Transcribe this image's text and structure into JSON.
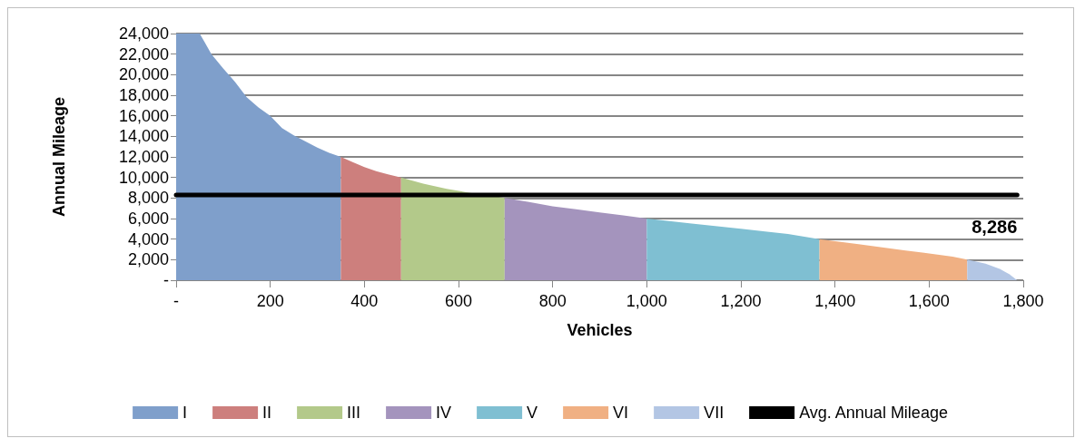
{
  "chart_data": {
    "type": "area",
    "xlabel": "Vehicles",
    "ylabel": "Annual Mileage",
    "xlim": [
      0,
      1800
    ],
    "xticks": [
      {
        "value": 0,
        "label": "-"
      },
      200,
      400,
      600,
      800,
      {
        "value": 1000,
        "label": "1,000"
      },
      {
        "value": 1200,
        "label": "1,200"
      },
      {
        "value": 1400,
        "label": "1,400"
      },
      {
        "value": 1600,
        "label": "1,600"
      },
      {
        "value": 1800,
        "label": "1,800"
      }
    ],
    "ylim": [
      0,
      24000
    ],
    "yticks": [
      {
        "value": 0,
        "label": "-"
      },
      {
        "value": 2000,
        "label": "2,000"
      },
      {
        "value": 4000,
        "label": "4,000"
      },
      {
        "value": 6000,
        "label": "6,000"
      },
      {
        "value": 8000,
        "label": "8,000"
      },
      {
        "value": 10000,
        "label": "10,000"
      },
      {
        "value": 12000,
        "label": "12,000"
      },
      {
        "value": 14000,
        "label": "14,000"
      },
      {
        "value": 16000,
        "label": "16,000"
      },
      {
        "value": 18000,
        "label": "18,000"
      },
      {
        "value": 20000,
        "label": "20,000"
      },
      {
        "value": 22000,
        "label": "22,000"
      },
      {
        "value": 24000,
        "label": "24,000"
      }
    ],
    "grid": "y",
    "legend": "bottom",
    "marker": "none",
    "series": [
      {
        "name": "I",
        "color": "#7f9fcb",
        "x": [
          0,
          50,
          60,
          75,
          100,
          125,
          150,
          175,
          200,
          225,
          250,
          275,
          300,
          325,
          350
        ],
        "values": [
          24000,
          24000,
          23200,
          22000,
          20600,
          19300,
          17800,
          16800,
          16000,
          14800,
          14100,
          13500,
          12900,
          12400,
          12000
        ]
      },
      {
        "name": "II",
        "color": "#cd7f7d",
        "x": [
          350,
          375,
          400,
          425,
          450,
          478
        ],
        "values": [
          12000,
          11500,
          11000,
          10600,
          10300,
          10000
        ]
      },
      {
        "name": "III",
        "color": "#b3c98a",
        "x": [
          478,
          525,
          575,
          625,
          675,
          698
        ],
        "values": [
          10000,
          9400,
          8900,
          8500,
          8200,
          8000
        ]
      },
      {
        "name": "IV",
        "color": "#a494bd",
        "x": [
          698,
          750,
          800,
          850,
          900,
          950,
          1000
        ],
        "values": [
          8000,
          7600,
          7200,
          6900,
          6600,
          6300,
          6000
        ]
      },
      {
        "name": "V",
        "color": "#7fbfd2",
        "x": [
          1000,
          1100,
          1200,
          1300,
          1367
        ],
        "values": [
          6000,
          5500,
          5000,
          4500,
          4000
        ]
      },
      {
        "name": "VI",
        "color": "#f0b083",
        "x": [
          1367,
          1450,
          1550,
          1650,
          1681
        ],
        "values": [
          4000,
          3500,
          2900,
          2300,
          2000
        ]
      },
      {
        "name": "VII",
        "color": "#b3c6e4",
        "x": [
          1681,
          1720,
          1750,
          1770,
          1787
        ],
        "values": [
          2000,
          1600,
          1100,
          600,
          0
        ]
      },
      {
        "name": "Avg. Annual Mileage",
        "type": "line",
        "color": "#000000",
        "x": [
          0,
          1787
        ],
        "values": [
          8286,
          8286
        ],
        "value_labels": [
          null,
          "8,286"
        ]
      }
    ]
  }
}
